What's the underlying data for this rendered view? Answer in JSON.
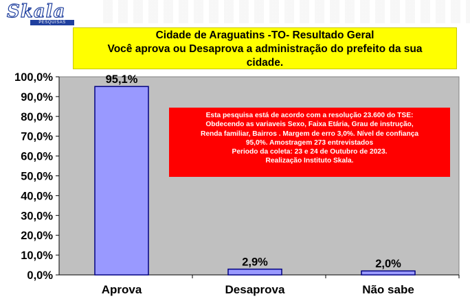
{
  "logo": {
    "name": "Skala",
    "tagline": "PESQUISAS"
  },
  "header": {
    "title_line1": "Cidade de Araguatins -TO- Resultado Geral",
    "title_line2": "Você aprova ou Desaprova a administração do prefeito da sua",
    "title_line3": "cidade."
  },
  "note": {
    "lines": [
      "Esta pesquisa está de acordo com a resolução 23.600 do TSE:",
      "Obdecendo as variaveis Sexo, Faixa Etária, Grau de instrução,",
      "Renda familiar, Bairros . Margem de erro 3,0%. Nível de confiança",
      "95,0%. Amostragem 273 entrevistados",
      "Periodo da coleta: 23 e 24 de Outubro de 2023.",
      "Realização Instituto Skala."
    ]
  },
  "colors": {
    "bar_fill": "#9999ff",
    "bar_stroke": "#000080",
    "plot_bg": "#c0c0c0",
    "title_bg": "#ffff00",
    "note_bg": "#ff0000"
  },
  "chart_data": {
    "type": "bar",
    "categories": [
      "Aprova",
      "Desaprova",
      "Não sabe"
    ],
    "values": [
      95.1,
      2.9,
      2.0
    ],
    "data_labels": [
      "95,1%",
      "2,9%",
      "2,0%"
    ],
    "ylim": [
      0,
      100
    ],
    "yticks": [
      0,
      10,
      20,
      30,
      40,
      50,
      60,
      70,
      80,
      90,
      100
    ],
    "ytick_labels": [
      "0,0%",
      "10,0%",
      "20,0%",
      "30,0%",
      "40,0%",
      "50,0%",
      "60,0%",
      "70,0%",
      "80,0%",
      "90,0%",
      "100,0%"
    ],
    "grid": false,
    "legend": "none"
  }
}
